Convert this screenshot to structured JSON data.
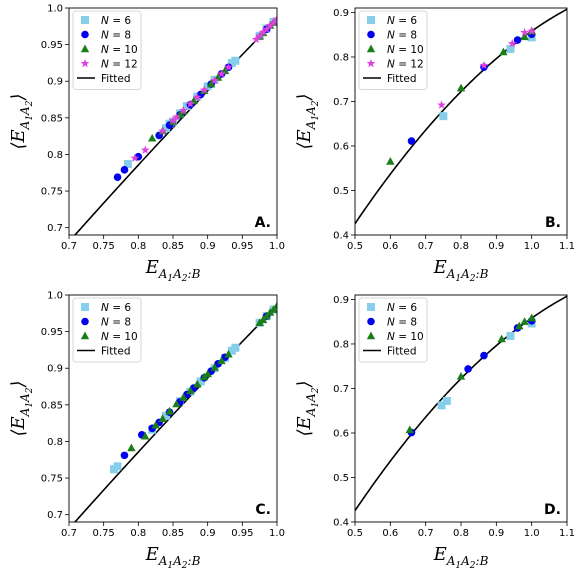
{
  "chart_data": [
    {
      "type": "scatter",
      "panel_label": "A.",
      "xlabel": "E_{A1A2:B}",
      "ylabel": "⟨E_{A1A2}⟩",
      "xlim": [
        0.7,
        1.0
      ],
      "ylim": [
        0.69,
        1.0
      ],
      "xticks": [
        0.7,
        0.75,
        0.8,
        0.85,
        0.9,
        0.95,
        1.0
      ],
      "yticks": [
        0.7,
        0.75,
        0.8,
        0.85,
        0.9,
        0.95,
        1.0
      ],
      "legend": "top-left",
      "series": [
        {
          "name": "N = 6",
          "marker": "square",
          "color": "#87ceeb",
          "points": [
            [
              0.785,
              0.787
            ],
            [
              0.84,
              0.836
            ],
            [
              0.845,
              0.842
            ],
            [
              0.85,
              0.845
            ],
            [
              0.86,
              0.856
            ],
            [
              0.87,
              0.866
            ],
            [
              0.885,
              0.879
            ],
            [
              0.9,
              0.893
            ],
            [
              0.91,
              0.902
            ],
            [
              0.935,
              0.925
            ],
            [
              0.94,
              0.928
            ],
            [
              0.975,
              0.962
            ],
            [
              0.985,
              0.972
            ],
            [
              0.995,
              0.981
            ]
          ]
        },
        {
          "name": "N = 8",
          "marker": "circle",
          "color": "#0000ee",
          "points": [
            [
              0.77,
              0.769
            ],
            [
              0.78,
              0.779
            ],
            [
              0.8,
              0.797
            ],
            [
              0.83,
              0.826
            ],
            [
              0.845,
              0.84
            ],
            [
              0.86,
              0.854
            ],
            [
              0.875,
              0.868
            ],
            [
              0.89,
              0.882
            ],
            [
              0.905,
              0.896
            ],
            [
              0.92,
              0.91
            ],
            [
              0.93,
              0.919
            ],
            [
              0.985,
              0.971
            ]
          ]
        },
        {
          "name": "N = 10",
          "marker": "triangle",
          "color": "#1a7f1a",
          "points": [
            [
              0.82,
              0.822
            ],
            [
              0.835,
              0.832
            ],
            [
              0.85,
              0.845
            ],
            [
              0.86,
              0.854
            ],
            [
              0.865,
              0.859
            ],
            [
              0.88,
              0.873
            ],
            [
              0.895,
              0.887
            ],
            [
              0.905,
              0.896
            ],
            [
              0.915,
              0.905
            ],
            [
              0.925,
              0.914
            ],
            [
              0.975,
              0.961
            ],
            [
              0.98,
              0.966
            ],
            [
              0.99,
              0.976
            ],
            [
              0.995,
              0.98
            ]
          ]
        },
        {
          "name": "N = 12",
          "marker": "star",
          "color": "#e040e0",
          "points": [
            [
              0.795,
              0.795
            ],
            [
              0.81,
              0.806
            ],
            [
              0.835,
              0.832
            ],
            [
              0.85,
              0.846
            ],
            [
              0.855,
              0.851
            ],
            [
              0.865,
              0.86
            ],
            [
              0.875,
              0.869
            ],
            [
              0.885,
              0.878
            ],
            [
              0.895,
              0.888
            ],
            [
              0.91,
              0.901
            ],
            [
              0.92,
              0.91
            ],
            [
              0.93,
              0.919
            ],
            [
              0.97,
              0.957
            ],
            [
              0.975,
              0.962
            ],
            [
              0.98,
              0.967
            ],
            [
              0.985,
              0.971
            ],
            [
              0.99,
              0.976
            ],
            [
              0.995,
              0.98
            ],
            [
              1.0,
              0.985
            ]
          ]
        }
      ],
      "fitted": {
        "name": "Fitted",
        "color": "#000000"
      }
    },
    {
      "type": "scatter",
      "panel_label": "B.",
      "xlabel": "E_{A1A2:B}",
      "ylabel": "⟨E_{A1A2}⟩",
      "xlim": [
        0.5,
        1.1
      ],
      "ylim": [
        0.4,
        0.91
      ],
      "xticks": [
        0.5,
        0.6,
        0.7,
        0.8,
        0.9,
        1.0,
        1.1
      ],
      "yticks": [
        0.4,
        0.5,
        0.6,
        0.7,
        0.8,
        0.9
      ],
      "legend": "top-left",
      "series": [
        {
          "name": "N = 6",
          "marker": "square",
          "color": "#87ceeb",
          "points": [
            [
              0.75,
              0.667
            ],
            [
              0.94,
              0.818
            ],
            [
              1.0,
              0.844
            ]
          ]
        },
        {
          "name": "N = 8",
          "marker": "circle",
          "color": "#0000ee",
          "points": [
            [
              0.66,
              0.611
            ],
            [
              0.865,
              0.777
            ],
            [
              0.96,
              0.838
            ],
            [
              1.0,
              0.851
            ]
          ]
        },
        {
          "name": "N = 10",
          "marker": "triangle",
          "color": "#1a7f1a",
          "points": [
            [
              0.6,
              0.565
            ],
            [
              0.8,
              0.73
            ],
            [
              0.92,
              0.811
            ],
            [
              0.98,
              0.845
            ],
            [
              1.0,
              0.858
            ]
          ]
        },
        {
          "name": "N = 12",
          "marker": "star",
          "color": "#e040e0",
          "points": [
            [
              0.745,
              0.692
            ],
            [
              0.865,
              0.781
            ],
            [
              0.945,
              0.83
            ],
            [
              0.98,
              0.855
            ],
            [
              1.0,
              0.858
            ]
          ]
        }
      ],
      "fitted": {
        "name": "Fitted",
        "color": "#000000"
      }
    },
    {
      "type": "scatter",
      "panel_label": "C.",
      "xlabel": "E_{A1A2:B}",
      "ylabel": "⟨E_{A1A2}⟩",
      "xlim": [
        0.7,
        1.0
      ],
      "ylim": [
        0.69,
        1.0
      ],
      "xticks": [
        0.7,
        0.75,
        0.8,
        0.85,
        0.9,
        0.95,
        1.0
      ],
      "yticks": [
        0.7,
        0.75,
        0.8,
        0.85,
        0.9,
        0.95,
        1.0
      ],
      "legend": "top-left",
      "series": [
        {
          "name": "N = 6",
          "marker": "square",
          "color": "#87ceeb",
          "points": [
            [
              0.765,
              0.762
            ],
            [
              0.77,
              0.766
            ],
            [
              0.82,
              0.816
            ],
            [
              0.84,
              0.835
            ],
            [
              0.86,
              0.855
            ],
            [
              0.875,
              0.868
            ],
            [
              0.89,
              0.882
            ],
            [
              0.91,
              0.9
            ],
            [
              0.925,
              0.914
            ],
            [
              0.935,
              0.924
            ],
            [
              0.94,
              0.928
            ],
            [
              0.975,
              0.962
            ],
            [
              0.985,
              0.971
            ],
            [
              0.995,
              0.98
            ]
          ]
        },
        {
          "name": "N = 8",
          "marker": "circle",
          "color": "#0000ee",
          "points": [
            [
              0.78,
              0.781
            ],
            [
              0.805,
              0.809
            ],
            [
              0.82,
              0.818
            ],
            [
              0.83,
              0.826
            ],
            [
              0.845,
              0.84
            ],
            [
              0.86,
              0.854
            ],
            [
              0.87,
              0.864
            ],
            [
              0.88,
              0.873
            ],
            [
              0.895,
              0.887
            ],
            [
              0.905,
              0.896
            ],
            [
              0.915,
              0.906
            ],
            [
              0.925,
              0.915
            ],
            [
              0.985,
              0.971
            ]
          ]
        },
        {
          "name": "N = 10",
          "marker": "triangle",
          "color": "#1a7f1a",
          "points": [
            [
              0.79,
              0.791
            ],
            [
              0.81,
              0.807
            ],
            [
              0.825,
              0.822
            ],
            [
              0.835,
              0.831
            ],
            [
              0.845,
              0.841
            ],
            [
              0.855,
              0.851
            ],
            [
              0.865,
              0.86
            ],
            [
              0.875,
              0.869
            ],
            [
              0.885,
              0.878
            ],
            [
              0.895,
              0.888
            ],
            [
              0.9,
              0.892
            ],
            [
              0.91,
              0.901
            ],
            [
              0.92,
              0.91
            ],
            [
              0.93,
              0.919
            ],
            [
              0.975,
              0.962
            ],
            [
              0.98,
              0.966
            ],
            [
              0.985,
              0.971
            ],
            [
              0.99,
              0.976
            ],
            [
              0.995,
              0.98
            ],
            [
              1.0,
              0.985
            ]
          ]
        }
      ],
      "fitted": {
        "name": "Fitted",
        "color": "#000000"
      }
    },
    {
      "type": "scatter",
      "panel_label": "D.",
      "xlabel": "E_{A1A2:B}",
      "ylabel": "⟨E_{A1A2}⟩",
      "xlim": [
        0.5,
        1.1
      ],
      "ylim": [
        0.4,
        0.91
      ],
      "xticks": [
        0.5,
        0.6,
        0.7,
        0.8,
        0.9,
        1.0,
        1.1
      ],
      "yticks": [
        0.4,
        0.5,
        0.6,
        0.7,
        0.8,
        0.9
      ],
      "legend": "top-left",
      "series": [
        {
          "name": "N = 6",
          "marker": "square",
          "color": "#87ceeb",
          "points": [
            [
              0.745,
              0.662
            ],
            [
              0.76,
              0.672
            ],
            [
              0.94,
              0.818
            ],
            [
              1.0,
              0.846
            ]
          ]
        },
        {
          "name": "N = 8",
          "marker": "circle",
          "color": "#0000ee",
          "points": [
            [
              0.66,
              0.601
            ],
            [
              0.82,
              0.744
            ],
            [
              0.865,
              0.774
            ],
            [
              0.96,
              0.836
            ],
            [
              1.0,
              0.852
            ]
          ]
        },
        {
          "name": "N = 10",
          "marker": "triangle",
          "color": "#1a7f1a",
          "points": [
            [
              0.655,
              0.607
            ],
            [
              0.8,
              0.727
            ],
            [
              0.915,
              0.811
            ],
            [
              0.965,
              0.84
            ],
            [
              0.98,
              0.85
            ],
            [
              1.0,
              0.858
            ]
          ]
        }
      ],
      "fitted": {
        "name": "Fitted",
        "color": "#000000"
      }
    }
  ]
}
